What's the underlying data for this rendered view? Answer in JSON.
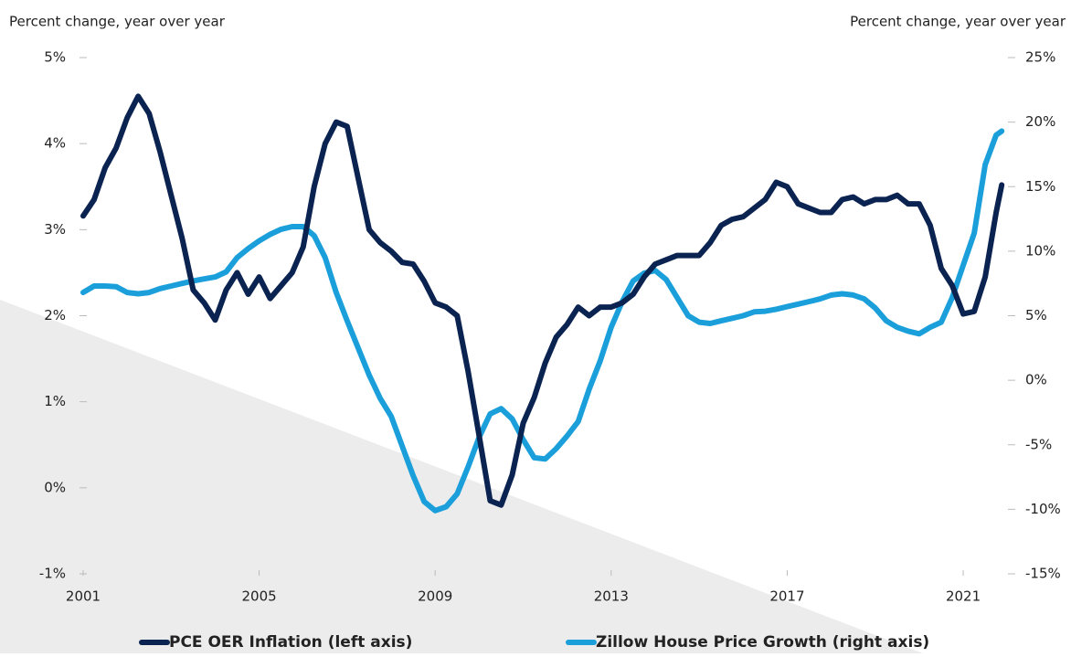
{
  "chart_data": {
    "type": "line",
    "y_label": "Percent change, year over year",
    "y2_label": "Percent change, year over year",
    "x": [
      2001,
      2001.25,
      2001.5,
      2001.75,
      2002,
      2002.25,
      2002.5,
      2002.75,
      2003,
      2003.25,
      2003.5,
      2003.75,
      2004,
      2004.25,
      2004.5,
      2004.75,
      2005,
      2005.25,
      2005.5,
      2005.75,
      2006,
      2006.25,
      2006.5,
      2006.75,
      2007,
      2007.25,
      2007.5,
      2007.75,
      2008,
      2008.25,
      2008.5,
      2008.75,
      2009,
      2009.25,
      2009.5,
      2009.75,
      2010,
      2010.25,
      2010.5,
      2010.75,
      2011,
      2011.25,
      2011.5,
      2011.75,
      2012,
      2012.25,
      2012.5,
      2012.75,
      2013,
      2013.25,
      2013.5,
      2013.75,
      2014,
      2014.25,
      2014.5,
      2014.75,
      2015,
      2015.25,
      2015.5,
      2015.75,
      2016,
      2016.25,
      2016.5,
      2016.75,
      2017,
      2017.25,
      2017.5,
      2017.75,
      2018,
      2018.25,
      2018.5,
      2018.75,
      2019,
      2019.25,
      2019.5,
      2019.75,
      2020,
      2020.25,
      2020.5,
      2020.75,
      2021,
      2021.25,
      2021.5,
      2021.75,
      2021.875
    ],
    "series": [
      {
        "name": "PCE OER Inflation (left axis)",
        "color": "#0b2350",
        "axis": "y",
        "values": [
          3.16,
          3.35,
          3.72,
          3.95,
          4.3,
          4.55,
          4.35,
          3.9,
          3.4,
          2.9,
          2.3,
          2.15,
          1.95,
          2.3,
          2.5,
          2.25,
          2.45,
          2.2,
          2.35,
          2.5,
          2.8,
          3.5,
          4.0,
          4.25,
          4.2,
          3.6,
          3.0,
          2.85,
          2.75,
          2.62,
          2.6,
          2.4,
          2.15,
          2.1,
          2.0,
          1.35,
          0.6,
          -0.15,
          -0.2,
          0.15,
          0.75,
          1.05,
          1.45,
          1.75,
          1.9,
          2.1,
          2.0,
          2.1,
          2.1,
          2.15,
          2.25,
          2.45,
          2.6,
          2.65,
          2.7,
          2.7,
          2.7,
          2.85,
          3.05,
          3.12,
          3.15,
          3.25,
          3.35,
          3.55,
          3.5,
          3.3,
          3.25,
          3.2,
          3.2,
          3.35,
          3.38,
          3.3,
          3.35,
          3.35,
          3.4,
          3.3,
          3.3,
          3.05,
          2.55,
          2.35,
          2.02,
          2.05,
          2.45,
          3.2,
          3.52
        ]
      },
      {
        "name": "Zillow House Price Growth (right axis)",
        "color": "#1a9fdb",
        "axis": "y2",
        "values": [
          6.8,
          7.3,
          7.3,
          7.25,
          6.8,
          6.7,
          6.8,
          7.1,
          7.3,
          7.5,
          7.7,
          7.85,
          8.0,
          8.4,
          9.5,
          10.2,
          10.8,
          11.3,
          11.7,
          11.9,
          11.9,
          11.2,
          9.5,
          6.8,
          4.6,
          2.5,
          0.4,
          -1.4,
          -2.8,
          -5.1,
          -7.4,
          -9.4,
          -10.1,
          -9.8,
          -8.8,
          -6.7,
          -4.4,
          -2.6,
          -2.2,
          -3.0,
          -4.6,
          -6.0,
          -6.1,
          -5.3,
          -4.3,
          -3.2,
          -0.7,
          1.5,
          4.1,
          6.1,
          7.7,
          8.3,
          8.5,
          7.8,
          6.4,
          5.0,
          4.5,
          4.4,
          4.6,
          4.8,
          5.0,
          5.3,
          5.35,
          5.5,
          5.7,
          5.9,
          6.1,
          6.3,
          6.6,
          6.7,
          6.6,
          6.3,
          5.6,
          4.6,
          4.1,
          3.8,
          3.6,
          4.1,
          4.5,
          6.4,
          8.9,
          11.4,
          16.7,
          19.0,
          19.3
        ]
      }
    ],
    "xlim": [
      2001,
      2022.1
    ],
    "xticks": [
      2001,
      2005,
      2009,
      2013,
      2017,
      2021
    ],
    "ylim": [
      -1,
      5
    ],
    "yticks": [
      {
        "value": -1,
        "label": "-1%"
      },
      {
        "value": 0,
        "label": "0%"
      },
      {
        "value": 1,
        "label": "1%"
      },
      {
        "value": 2,
        "label": "2%"
      },
      {
        "value": 3,
        "label": "3%"
      },
      {
        "value": 4,
        "label": "4%"
      },
      {
        "value": 5,
        "label": "5%"
      }
    ],
    "y2lim": [
      -15,
      25
    ],
    "y2ticks": [
      {
        "value": -15,
        "label": "-15%"
      },
      {
        "value": -10,
        "label": "-10%"
      },
      {
        "value": -5,
        "label": "-5%"
      },
      {
        "value": 0,
        "label": "0%"
      },
      {
        "value": 5,
        "label": "5%"
      },
      {
        "value": 10,
        "label": "10%"
      },
      {
        "value": 15,
        "label": "15%"
      },
      {
        "value": 20,
        "label": "20%"
      },
      {
        "value": 25,
        "label": "25%"
      }
    ],
    "legend": "bottom"
  }
}
